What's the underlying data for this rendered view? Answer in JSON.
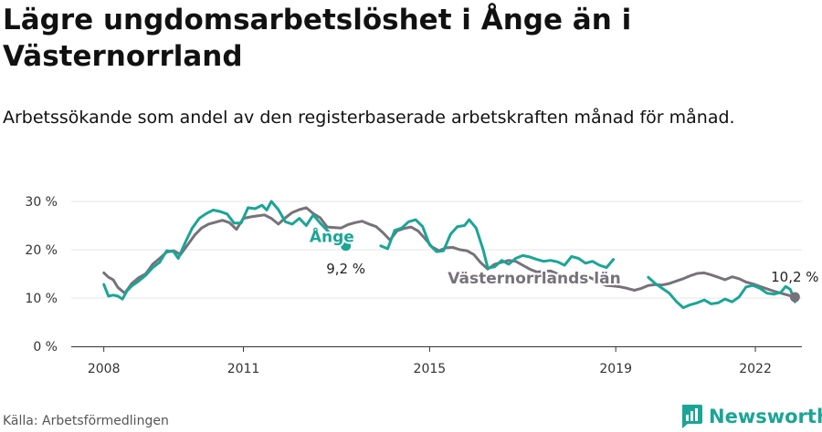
{
  "title": "Lägre ungdomsarbetslöshet i Ånge än i Västernorrland",
  "subtitle": "Arbetssökande som andel av den registerbaserade arbetskraften månad för månad.",
  "source": "Källa: Arbetsförmedlingen",
  "brand": "Newsworthy",
  "colors": {
    "ange": "#1aa596",
    "lan": "#76727a",
    "brand": "#1aa596",
    "grid": "#e5e5e5",
    "axis": "#333333"
  },
  "chart_data": {
    "type": "line",
    "ylim": [
      0,
      30
    ],
    "yticks": [
      "0 %",
      "10 %",
      "20 %",
      "30 %"
    ],
    "xticks": [
      {
        "label": "2008",
        "value": 2008.0
      },
      {
        "label": "2011",
        "value": 2011.0
      },
      {
        "label": "2015",
        "value": 2015.0
      },
      {
        "label": "2019",
        "value": 2019.0
      },
      {
        "label": "2022",
        "value": 2022.0
      }
    ],
    "xlim": [
      2007.3,
      2023.0
    ],
    "series": [
      {
        "key": "lan",
        "name": "Västernorrlands län",
        "end_label": "10,2 %",
        "points": [
          [
            2008.0,
            15.2
          ],
          [
            2008.1,
            14.3
          ],
          [
            2008.2,
            13.8
          ],
          [
            2008.3,
            12.2
          ],
          [
            2008.45,
            11.0
          ],
          [
            2008.6,
            13.0
          ],
          [
            2008.75,
            14.2
          ],
          [
            2008.9,
            15.0
          ],
          [
            2009.05,
            17.0
          ],
          [
            2009.2,
            18.2
          ],
          [
            2009.35,
            19.5
          ],
          [
            2009.5,
            19.8
          ],
          [
            2009.65,
            19.0
          ],
          [
            2009.8,
            21.0
          ],
          [
            2009.95,
            23.0
          ],
          [
            2010.1,
            24.5
          ],
          [
            2010.25,
            25.3
          ],
          [
            2010.4,
            25.7
          ],
          [
            2010.55,
            26.1
          ],
          [
            2010.7,
            25.6
          ],
          [
            2010.85,
            24.2
          ],
          [
            2011.0,
            26.5
          ],
          [
            2011.15,
            26.8
          ],
          [
            2011.3,
            27.0
          ],
          [
            2011.45,
            27.2
          ],
          [
            2011.6,
            26.5
          ],
          [
            2011.75,
            25.3
          ],
          [
            2011.9,
            26.6
          ],
          [
            2012.05,
            27.7
          ],
          [
            2012.2,
            28.3
          ],
          [
            2012.35,
            28.7
          ],
          [
            2012.5,
            27.5
          ],
          [
            2012.65,
            26.6
          ],
          [
            2012.8,
            24.7
          ],
          [
            2013.1,
            24.5
          ],
          [
            2013.25,
            25.2
          ],
          [
            2013.4,
            25.6
          ],
          [
            2013.55,
            25.9
          ],
          [
            2013.7,
            25.3
          ],
          [
            2013.85,
            24.8
          ],
          [
            2014.0,
            23.5
          ],
          [
            2014.15,
            22.0
          ],
          [
            2014.3,
            23.9
          ],
          [
            2014.45,
            24.4
          ],
          [
            2014.6,
            24.7
          ],
          [
            2014.75,
            23.9
          ],
          [
            2014.9,
            22.3
          ],
          [
            2015.05,
            20.6
          ],
          [
            2015.2,
            19.8
          ],
          [
            2015.35,
            20.4
          ],
          [
            2015.5,
            20.5
          ],
          [
            2015.65,
            20.0
          ],
          [
            2015.8,
            19.8
          ],
          [
            2015.95,
            19.0
          ],
          [
            2016.1,
            17.3
          ],
          [
            2016.25,
            16.0
          ],
          [
            2016.4,
            17.0
          ],
          [
            2016.55,
            17.4
          ],
          [
            2016.7,
            17.8
          ],
          [
            2016.85,
            17.6
          ],
          [
            2017.0,
            16.8
          ],
          [
            2017.15,
            16.0
          ],
          [
            2017.3,
            15.4
          ],
          [
            2017.45,
            15.5
          ],
          [
            2017.6,
            15.6
          ],
          [
            2017.75,
            15.0
          ],
          [
            2017.9,
            14.5
          ],
          [
            2018.05,
            13.8
          ],
          [
            2018.2,
            14.2
          ],
          [
            2018.35,
            14.6
          ],
          [
            2018.5,
            14.0
          ],
          [
            2018.65,
            13.2
          ],
          [
            2018.8,
            12.6
          ],
          [
            2018.95,
            12.5
          ],
          [
            2019.1,
            12.3
          ],
          [
            2019.25,
            12.0
          ],
          [
            2019.4,
            11.6
          ],
          [
            2019.55,
            12.0
          ],
          [
            2019.7,
            12.6
          ],
          [
            2019.85,
            12.8
          ],
          [
            2020.0,
            12.7
          ],
          [
            2020.15,
            13.0
          ],
          [
            2020.3,
            13.5
          ],
          [
            2020.45,
            14.0
          ],
          [
            2020.6,
            14.6
          ],
          [
            2020.75,
            15.1
          ],
          [
            2020.9,
            15.2
          ],
          [
            2021.05,
            14.8
          ],
          [
            2021.2,
            14.3
          ],
          [
            2021.35,
            13.8
          ],
          [
            2021.5,
            14.4
          ],
          [
            2021.65,
            14.0
          ],
          [
            2021.8,
            13.3
          ],
          [
            2021.95,
            12.9
          ],
          [
            2022.1,
            12.4
          ],
          [
            2022.25,
            11.9
          ],
          [
            2022.4,
            11.4
          ],
          [
            2022.55,
            11.0
          ],
          [
            2022.7,
            10.6
          ],
          [
            2022.85,
            10.2
          ]
        ]
      },
      {
        "key": "ange",
        "name": "Ånge",
        "end_label": "9,2 %",
        "points": [
          [
            2008.0,
            12.8
          ],
          [
            2008.1,
            10.4
          ],
          [
            2008.2,
            10.6
          ],
          [
            2008.3,
            10.4
          ],
          [
            2008.4,
            9.8
          ],
          [
            2008.5,
            11.5
          ],
          [
            2008.6,
            12.5
          ],
          [
            2008.75,
            13.5
          ],
          [
            2008.9,
            14.7
          ],
          [
            2009.05,
            16.3
          ],
          [
            2009.2,
            17.4
          ],
          [
            2009.35,
            19.8
          ],
          [
            2009.5,
            19.6
          ],
          [
            2009.6,
            18.2
          ],
          [
            2009.75,
            21.5
          ],
          [
            2009.9,
            24.5
          ],
          [
            2010.05,
            26.5
          ],
          [
            2010.2,
            27.5
          ],
          [
            2010.35,
            28.2
          ],
          [
            2010.5,
            27.9
          ],
          [
            2010.65,
            27.4
          ],
          [
            2010.8,
            25.5
          ],
          [
            2010.95,
            25.5
          ],
          [
            2011.1,
            28.7
          ],
          [
            2011.25,
            28.5
          ],
          [
            2011.4,
            29.2
          ],
          [
            2011.5,
            28.2
          ],
          [
            2011.6,
            30.0
          ],
          [
            2011.75,
            28.3
          ],
          [
            2011.9,
            25.8
          ],
          [
            2012.05,
            25.3
          ],
          [
            2012.2,
            26.5
          ],
          [
            2012.35,
            25.0
          ],
          [
            2012.5,
            27.2
          ],
          [
            2012.65,
            25.5
          ],
          [
            2012.8,
            24.0
          ],
          [
            2012.95,
            22.5
          ],
          [
            2013.1,
            21.0
          ],
          [
            2013.2,
            20.8
          ]
        ]
      },
      {
        "key": "ange",
        "name": "",
        "points": [
          [
            2013.95,
            20.8
          ],
          [
            2014.1,
            20.2
          ],
          [
            2014.25,
            24.0
          ],
          [
            2014.4,
            24.5
          ],
          [
            2014.55,
            25.8
          ],
          [
            2014.7,
            26.2
          ],
          [
            2014.85,
            24.8
          ],
          [
            2015.0,
            21.0
          ],
          [
            2015.15,
            19.6
          ],
          [
            2015.3,
            19.8
          ],
          [
            2015.45,
            23.2
          ],
          [
            2015.6,
            24.8
          ],
          [
            2015.75,
            25.0
          ],
          [
            2015.85,
            26.2
          ],
          [
            2016.0,
            24.5
          ],
          [
            2016.15,
            20.0
          ],
          [
            2016.25,
            16.2
          ],
          [
            2016.4,
            16.5
          ],
          [
            2016.55,
            17.8
          ],
          [
            2016.7,
            17.0
          ],
          [
            2016.85,
            18.2
          ],
          [
            2017.0,
            18.8
          ],
          [
            2017.15,
            18.5
          ],
          [
            2017.3,
            18.0
          ],
          [
            2017.45,
            17.6
          ],
          [
            2017.6,
            17.8
          ],
          [
            2017.75,
            17.5
          ],
          [
            2017.9,
            16.8
          ],
          [
            2018.05,
            18.6
          ],
          [
            2018.2,
            18.2
          ],
          [
            2018.35,
            17.2
          ],
          [
            2018.5,
            17.6
          ],
          [
            2018.65,
            16.8
          ],
          [
            2018.8,
            16.3
          ],
          [
            2018.95,
            18.0
          ]
        ]
      },
      {
        "key": "ange",
        "name": "",
        "points": [
          [
            2019.7,
            14.3
          ],
          [
            2019.85,
            13.0
          ],
          [
            2020.0,
            12.0
          ],
          [
            2020.15,
            11.0
          ],
          [
            2020.3,
            9.3
          ],
          [
            2020.45,
            8.0
          ],
          [
            2020.6,
            8.6
          ],
          [
            2020.75,
            9.0
          ],
          [
            2020.9,
            9.6
          ],
          [
            2021.05,
            8.8
          ],
          [
            2021.2,
            9.0
          ],
          [
            2021.35,
            9.8
          ],
          [
            2021.5,
            9.2
          ],
          [
            2021.65,
            10.2
          ],
          [
            2021.8,
            12.3
          ],
          [
            2021.95,
            12.6
          ],
          [
            2022.1,
            12.0
          ],
          [
            2022.25,
            11.0
          ],
          [
            2022.4,
            10.8
          ],
          [
            2022.55,
            11.2
          ],
          [
            2022.65,
            12.4
          ],
          [
            2022.75,
            11.8
          ],
          [
            2022.85,
            9.2
          ]
        ]
      }
    ],
    "series_labels": [
      {
        "key": "ange",
        "text": "Ånge",
        "x": 2012.9,
        "y": 21.6
      },
      {
        "key": "lan",
        "text": "Västernorrlands län",
        "x": 2017.25,
        "y": 13.0
      }
    ]
  }
}
